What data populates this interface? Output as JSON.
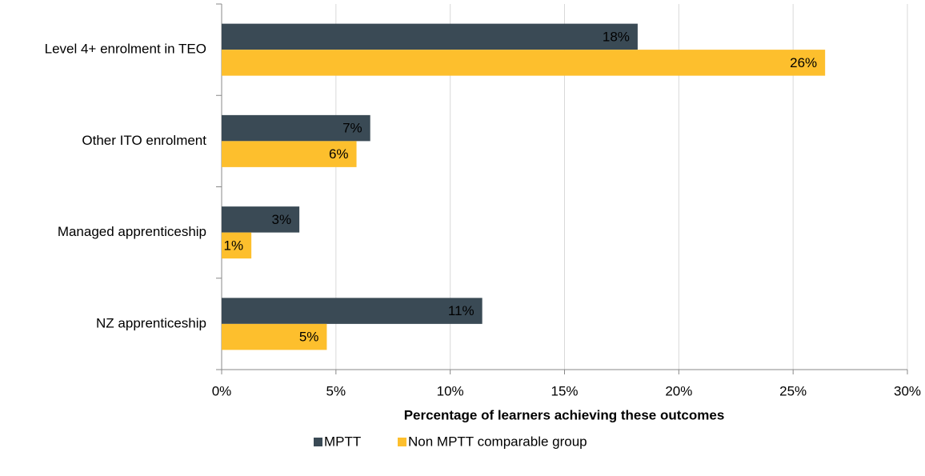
{
  "chart_data": {
    "type": "bar",
    "orientation": "horizontal",
    "x_label": "Percentage of learners achieving these outcomes",
    "categories": [
      "Level 4+ enrolment in TEO",
      "Other ITO enrolment",
      "Managed apprenticeship",
      "NZ apprenticeship"
    ],
    "series": [
      {
        "name": "MPTT",
        "color": "#3a4a55",
        "values": [
          18.2,
          6.5,
          3.4,
          11.4
        ],
        "value_labels": [
          "18%",
          "7%",
          "3%",
          "11%"
        ],
        "label_color": "#ffffff"
      },
      {
        "name": "Non MPTT comparable group",
        "color": "#fdbf2d",
        "values": [
          26.4,
          5.9,
          1.3,
          4.6
        ],
        "value_labels": [
          "26%",
          "6%",
          "1%",
          "5%"
        ],
        "label_color": "#000000"
      }
    ],
    "xlim": [
      0,
      30
    ],
    "xticks": [
      {
        "value": 0,
        "label": "0%"
      },
      {
        "value": 5,
        "label": "5%"
      },
      {
        "value": 10,
        "label": "10%"
      },
      {
        "value": 15,
        "label": "15%"
      },
      {
        "value": 20,
        "label": "20%"
      },
      {
        "value": 25,
        "label": "25%"
      },
      {
        "value": 30,
        "label": "30%"
      }
    ],
    "grid": true,
    "legend": "bottom"
  }
}
